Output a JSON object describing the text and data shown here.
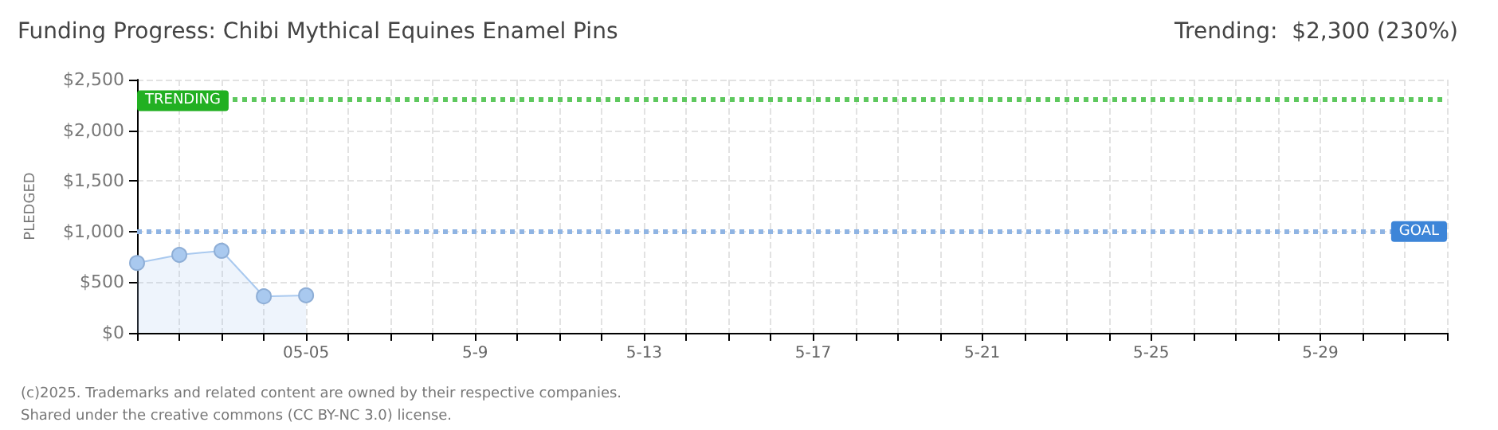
{
  "chart_data": {
    "type": "area",
    "title": "Funding Progress: Chibi Mythical Equines Enamel Pins",
    "subtitle": "Trending:  $2,300 (230%)",
    "ylabel": "PLEDGED",
    "categories": [
      null,
      null,
      null,
      null,
      "05-05",
      null,
      null,
      null,
      "5-9",
      null,
      null,
      null,
      "5-13",
      null,
      null,
      null,
      "5-17",
      null,
      null,
      null,
      "5-21",
      null,
      null,
      null,
      "5-25",
      null,
      null,
      null,
      "5-29",
      null,
      null,
      null
    ],
    "series": [
      {
        "color": "#a9c9ef",
        "values": [
          690,
          770,
          810,
          360,
          370,
          null,
          null,
          null,
          null,
          null,
          null,
          null,
          null,
          null,
          null,
          null,
          null,
          null,
          null,
          null,
          null,
          null,
          null,
          null,
          null,
          null,
          null,
          null,
          null,
          null,
          null,
          null
        ]
      }
    ],
    "ylim": [
      0,
      2500
    ],
    "yticks": [
      {
        "value": 0,
        "label": "$0"
      },
      {
        "value": 500,
        "label": "$500"
      },
      {
        "value": 1000,
        "label": "$1,000"
      },
      {
        "value": 1500,
        "label": "$1,500"
      },
      {
        "value": 2000,
        "label": "$2,000"
      },
      {
        "value": 2500,
        "label": "$2,500"
      }
    ],
    "grid": true,
    "marker": "circle",
    "ref_lines": [
      {
        "axis": "y",
        "value": 2300,
        "label": "TRENDING",
        "color": "#5ec85e",
        "line_style": "dotted"
      },
      {
        "axis": "y",
        "value": 1000,
        "label": "GOAL",
        "color": "#8fb4e3",
        "line_style": "dotted"
      }
    ],
    "annotations": [
      "(c)2025. Trademarks and related content are owned by their respective companies.",
      "Shared under the creative commons (CC BY-NC 3.0) license."
    ]
  }
}
